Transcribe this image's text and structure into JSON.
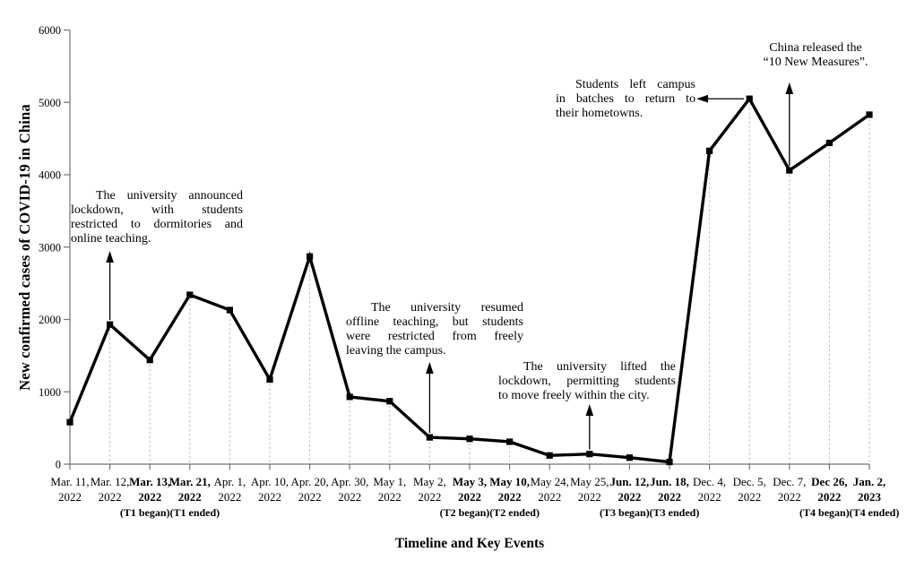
{
  "chart_data": {
    "type": "line",
    "title": "",
    "xlabel": "Timeline and Key Events",
    "ylabel": "New confirmed cases of COVID-19 in China",
    "ylim": [
      0,
      6000
    ],
    "y_ticks": [
      0,
      1000,
      2000,
      3000,
      4000,
      5000,
      6000
    ],
    "grid": "dashed vertical drop-lines from each data point to the x-axis",
    "legend": "none",
    "line_color": "#000000",
    "marker": "filled-square",
    "categories": [
      {
        "date": "Mar. 11,",
        "year": "2022",
        "bold": false
      },
      {
        "date": "Mar. 12,",
        "year": "2022",
        "bold": false
      },
      {
        "date": "Mar. 13,",
        "year": "2022",
        "bold": true
      },
      {
        "date": "Mar. 21,",
        "year": "2022",
        "bold": true
      },
      {
        "date": "Apr. 1,",
        "year": "2022",
        "bold": false
      },
      {
        "date": "Apr. 10,",
        "year": "2022",
        "bold": false
      },
      {
        "date": "Apr. 20,",
        "year": "2022",
        "bold": false
      },
      {
        "date": "Apr. 30,",
        "year": "2022",
        "bold": false
      },
      {
        "date": "May 1,",
        "year": "2022",
        "bold": false
      },
      {
        "date": "May 2,",
        "year": "2022",
        "bold": false
      },
      {
        "date": "May 3,",
        "year": "2022",
        "bold": true
      },
      {
        "date": "May 10,",
        "year": "2022",
        "bold": true
      },
      {
        "date": "May 24,",
        "year": "2022",
        "bold": false
      },
      {
        "date": "May 25,",
        "year": "2022",
        "bold": false
      },
      {
        "date": "Jun. 12,",
        "year": "2022",
        "bold": true
      },
      {
        "date": "Jun. 18,",
        "year": "2022",
        "bold": true
      },
      {
        "date": "Dec. 4,",
        "year": "2022",
        "bold": false
      },
      {
        "date": "Dec. 5,",
        "year": "2022",
        "bold": false
      },
      {
        "date": "Dec. 7,",
        "year": "2022",
        "bold": false
      },
      {
        "date": "Dec 26,",
        "year": "2022",
        "bold": true
      },
      {
        "date": "Jan. 2,",
        "year": "2023",
        "bold": true
      }
    ],
    "values": [
      580,
      1930,
      1440,
      2340,
      2130,
      1170,
      2870,
      930,
      870,
      370,
      350,
      310,
      120,
      140,
      90,
      30,
      4330,
      5050,
      4060,
      4440,
      4830
    ],
    "period_labels": [
      {
        "text": "(T1 began)(T1 ended)",
        "between": [
          2,
          3
        ]
      },
      {
        "text": "(T2 began)(T2 ended)",
        "between": [
          10,
          11
        ]
      },
      {
        "text": "(T3 began)(T3 ended)",
        "between": [
          14,
          15
        ]
      },
      {
        "text": "(T4 began)(T4 ended)",
        "between": [
          19,
          20
        ]
      }
    ],
    "annotations": [
      {
        "lines": [
          "The university announced",
          "lockdown, with students",
          "restricted to dormitories and",
          "online teaching."
        ],
        "target_index": 1,
        "arrow": "vertical"
      },
      {
        "lines": [
          "The university resumed",
          "offline teaching, but students",
          "were restricted from freely",
          "leaving the campus."
        ],
        "target_index": 9,
        "arrow": "vertical"
      },
      {
        "lines": [
          "The university lifted the",
          "lockdown, permitting students",
          "to move freely within the city."
        ],
        "target_index": 13,
        "arrow": "vertical"
      },
      {
        "lines": [
          "Students left campus",
          "in batches to return to",
          "their hometowns."
        ],
        "target_index": 17,
        "arrow": "horizontal"
      },
      {
        "lines": [
          "China released the",
          "“10 New Measures”."
        ],
        "target_index": 18,
        "arrow": "vertical"
      }
    ]
  }
}
